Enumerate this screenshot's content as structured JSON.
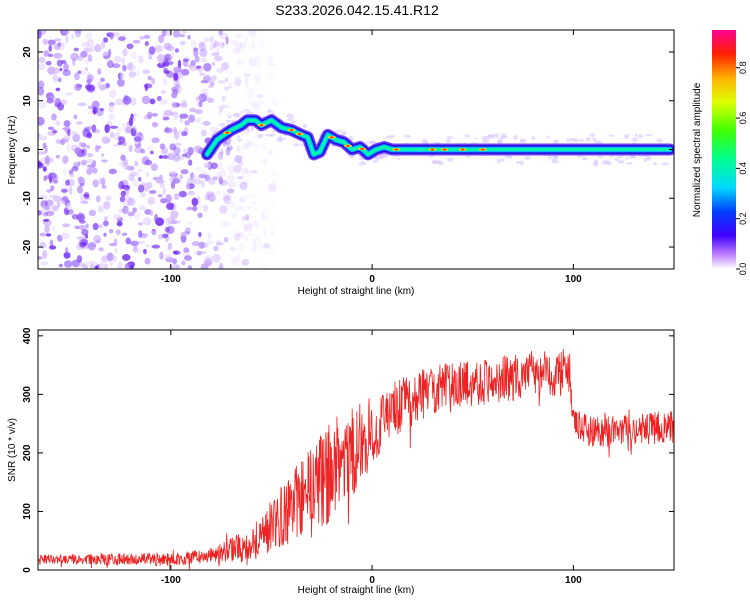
{
  "title": "S233.2026.042.15.41.R12",
  "colors": {
    "snr_line": "#ee2222",
    "axis": "#000000"
  },
  "chart_data": [
    {
      "type": "heatmap",
      "name": "spectrogram",
      "xlabel": "Height of straight line (km)",
      "ylabel": "Frequency (Hz)",
      "xlim": [
        -166,
        150
      ],
      "ylim": [
        -24.5,
        24.5
      ],
      "xticks": [
        -100,
        0,
        100
      ],
      "yticks": [
        -20,
        -10,
        0,
        10,
        20
      ],
      "colorbar": {
        "label": "Normalized spectral amplitude",
        "range": [
          0,
          0.95
        ],
        "ticks": [
          0.0,
          0.2,
          0.4,
          0.6,
          0.8
        ]
      },
      "ridge": {
        "x": [
          -82,
          -77,
          -70,
          -65,
          -62,
          -58,
          -55,
          -50,
          -45,
          -40,
          -35,
          -32,
          -29,
          -26,
          -22,
          -18,
          -14,
          -10,
          -6,
          -2,
          2,
          6,
          10,
          14,
          20,
          40,
          60,
          80,
          100,
          120,
          148
        ],
        "freq": [
          -1,
          2,
          4,
          5,
          6,
          6,
          5,
          6,
          4.5,
          4,
          3,
          2.5,
          -1,
          -0.5,
          3,
          2,
          1.5,
          0,
          0.5,
          -1,
          0,
          0.5,
          0,
          0,
          0,
          0,
          0,
          0,
          0,
          0,
          0
        ]
      },
      "noise_region_x": [
        -166,
        -58
      ]
    },
    {
      "type": "line",
      "name": "snr",
      "xlabel": "Height of straight line (km)",
      "ylabel": "SNR (10 * v/v)",
      "xlim": [
        -166,
        150
      ],
      "ylim": [
        0,
        410
      ],
      "xticks": [
        -100,
        0,
        100
      ],
      "yticks": [
        0,
        100,
        200,
        300,
        400
      ],
      "envelope": {
        "x": [
          -166,
          -100,
          -80,
          -60,
          -45,
          -30,
          -10,
          10,
          30,
          50,
          70,
          80,
          90,
          98,
          100,
          105,
          120,
          135,
          150
        ],
        "y": [
          18,
          18,
          25,
          45,
          90,
          140,
          200,
          270,
          310,
          320,
          328,
          335,
          335,
          340,
          250,
          240,
          235,
          240,
          245
        ]
      },
      "spread": {
        "x": [
          -166,
          -80,
          -60,
          -40,
          -20,
          -5,
          10,
          40,
          80,
          98,
          100,
          150
        ],
        "y": [
          8,
          12,
          30,
          60,
          90,
          70,
          50,
          40,
          40,
          40,
          28,
          28
        ]
      }
    }
  ]
}
